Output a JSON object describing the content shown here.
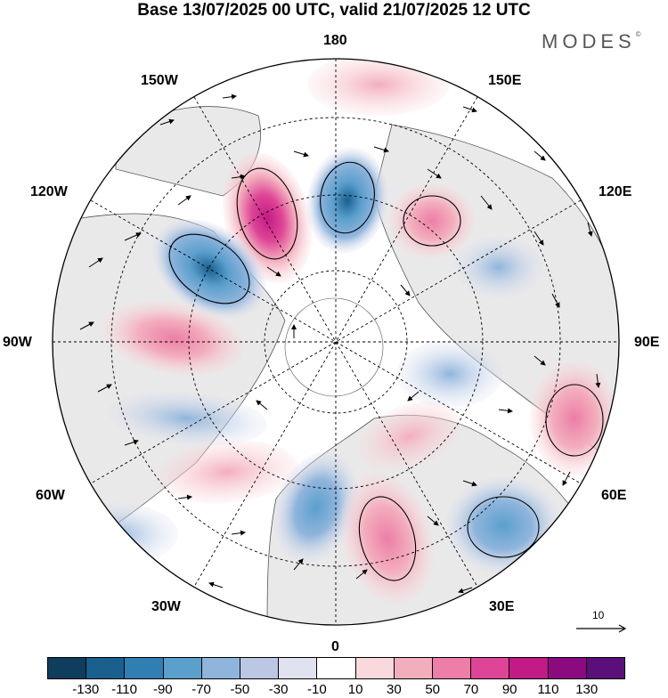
{
  "header": {
    "title": "Base 13/07/2025 00 UTC, valid 21/07/2025 12 UTC",
    "brand": "MODES",
    "brand_mark": "©"
  },
  "map": {
    "projection": "north-polar-stereographic",
    "longitude_labels": {
      "top": "180",
      "bottom": "0",
      "left": "90W",
      "right": "90E",
      "upper_left_outer": "150W",
      "upper_left_inner": "120W",
      "lower_left_inner": "60W",
      "lower_left_outer": "30W",
      "upper_right_outer": "150E",
      "upper_right_inner": "120E",
      "lower_right_inner": "60E",
      "lower_right_outer": "30E"
    },
    "reference_vector": "10",
    "colors": {
      "land_fill": "#e9e9e9",
      "ocean_fill": "#ffffff",
      "coast": "#555555",
      "grid": "#000000"
    }
  },
  "colorbar": {
    "colors": [
      "#0f3d5e",
      "#19608f",
      "#2f7fb3",
      "#5b9fcd",
      "#8fb5dc",
      "#bcc7e3",
      "#e1e2f0",
      "#ffffff",
      "#f9d9dc",
      "#f3aebd",
      "#ec7ea7",
      "#de4596",
      "#c21a86",
      "#8c0a80",
      "#5b0f7b"
    ],
    "ticks": [
      "-130",
      "-110",
      "-90",
      "-70",
      "-50",
      "-30",
      "-10",
      "10",
      "30",
      "50",
      "70",
      "90",
      "110",
      "130"
    ]
  }
}
